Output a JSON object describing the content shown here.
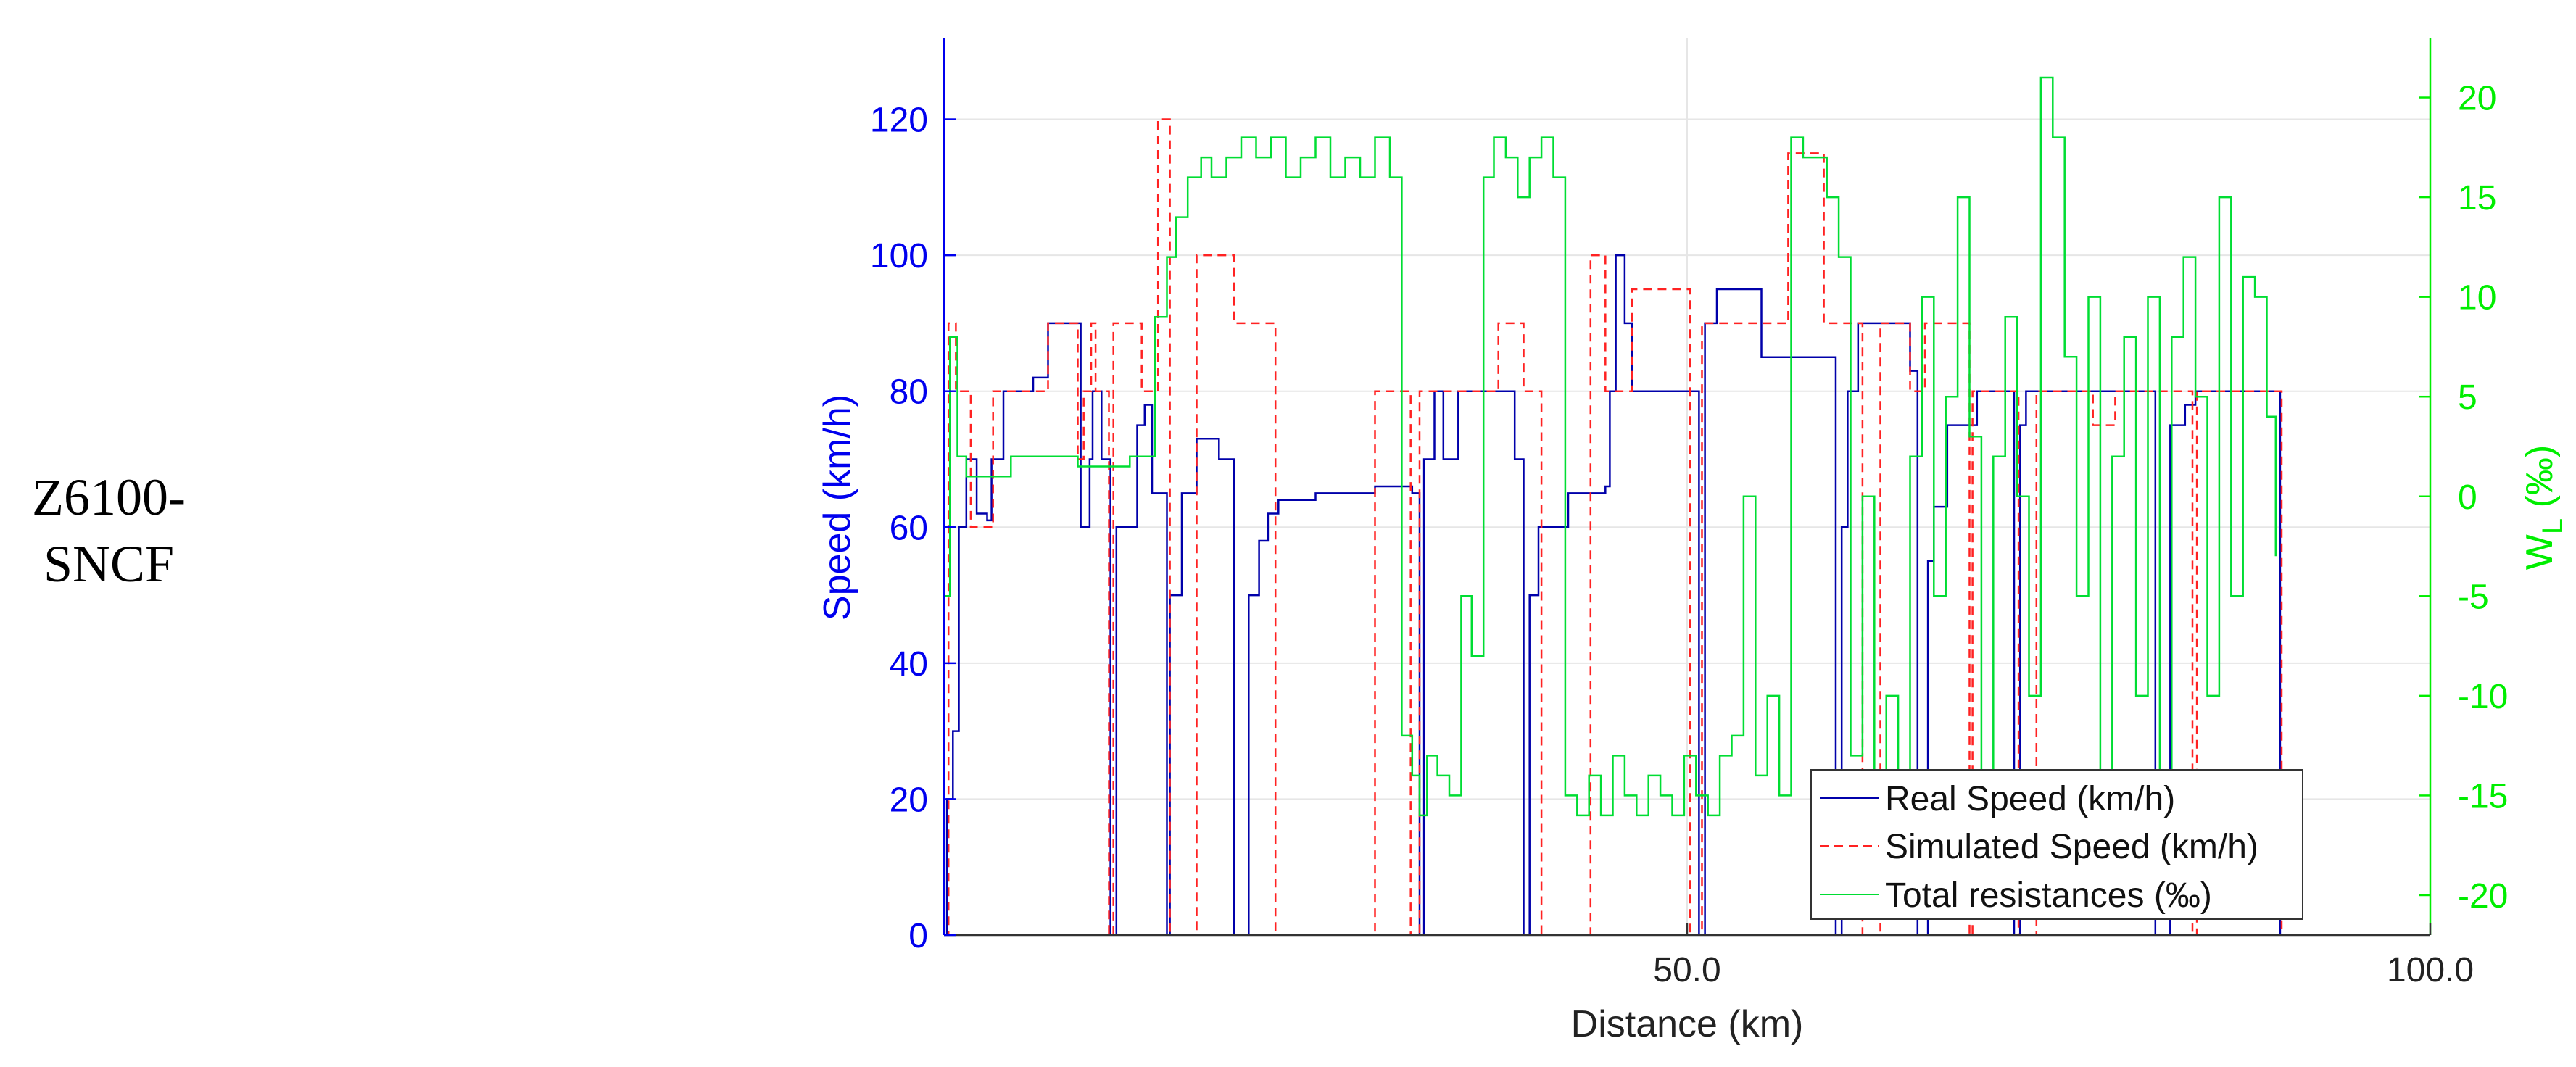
{
  "row_label": {
    "line1": "Z6100-",
    "line2": "SNCF"
  },
  "colors": {
    "left_axis": "#0000ee",
    "right_axis": "#00ee00",
    "real_speed": "#0000aa",
    "simulated_speed": "#ff2222",
    "total_resistances": "#00dd33",
    "grid": "#e6e6e6",
    "axis_black": "#333333"
  },
  "chart_data": {
    "type": "line",
    "xlabel": "Distance (km)",
    "ylabel": "Speed (km/h)",
    "y2label_main": "W",
    "y2label_sub": "L",
    "y2label_tail": " (‰)",
    "xlim": [
      0,
      100
    ],
    "ylim": [
      0,
      132
    ],
    "y2lim": [
      -22,
      23
    ],
    "x_ticks": [
      50,
      100
    ],
    "x_tick_labels": [
      "50.0",
      "100.0"
    ],
    "y_ticks": [
      0,
      20,
      40,
      60,
      80,
      100,
      120
    ],
    "y_tick_labels": [
      "0",
      "20",
      "40",
      "60",
      "80",
      "100",
      "120"
    ],
    "y2_ticks": [
      -20,
      -15,
      -10,
      -5,
      0,
      5,
      10,
      15,
      20
    ],
    "y2_tick_labels": [
      "-20",
      "-15",
      "-10",
      "-5",
      "0",
      "5",
      "10",
      "15",
      "20"
    ],
    "grid": true,
    "legend_position": "bottom-right",
    "series": [
      {
        "name": "Real Speed (km/h)",
        "axis": "left",
        "style": "solid",
        "x": [
          0,
          0.2,
          0.6,
          1.0,
          1.5,
          2.2,
          2.9,
          3.2,
          4.0,
          5.0,
          6.0,
          7.0,
          8.5,
          9.2,
          9.8,
          10.0,
          10.6,
          11.2,
          11.6,
          13.0,
          13.5,
          14.0,
          15.0,
          15.2,
          16.0,
          17.0,
          18.5,
          19.5,
          20.5,
          21.2,
          21.8,
          22.5,
          25.0,
          29.0,
          31.5,
          32.0,
          32.3,
          33.0,
          33.6,
          34.0,
          34.6,
          35.0,
          35.3,
          37.0,
          38.0,
          38.4,
          39.0,
          39.4,
          40.0,
          42.0,
          44.5,
          44.8,
          45.2,
          45.8,
          46.3,
          47.0,
          49.0,
          50.0,
          50.8,
          51.0,
          51.2,
          52.0,
          53.0,
          55.0,
          56.0,
          58.0,
          60.0,
          60.4,
          60.8,
          61.5,
          62.5,
          64.0,
          65.0,
          65.5,
          66.2,
          66.6,
          67.5,
          69.5,
          71.5,
          72.0,
          72.4,
          72.8,
          73.5,
          75.0,
          76.0,
          76.3,
          76.6,
          78.0,
          80.0,
          81.5,
          82.5,
          83.5,
          84.2,
          85.0,
          86.0,
          86.4,
          86.8,
          87.5,
          88.3,
          89.5,
          89.7,
          89.9,
          100.0
        ],
        "y": [
          0,
          20,
          30,
          60,
          70,
          62,
          61,
          70,
          80,
          80,
          82,
          90,
          90,
          60,
          70,
          80,
          70,
          0,
          60,
          75,
          78,
          65,
          0,
          50,
          65,
          73,
          70,
          0,
          50,
          58,
          62,
          64,
          65,
          66,
          65,
          0,
          70,
          80,
          70,
          70,
          80,
          80,
          80,
          80,
          80,
          70,
          0,
          50,
          60,
          65,
          66,
          80,
          100,
          90,
          80,
          80,
          80,
          80,
          0,
          0,
          90,
          95,
          95,
          85,
          85,
          85,
          0,
          60,
          80,
          90,
          90,
          90,
          83,
          0,
          55,
          63,
          75,
          80,
          80,
          0,
          75,
          80,
          80,
          80,
          80,
          80,
          80,
          80,
          80,
          0,
          75,
          78,
          80,
          80,
          80,
          80,
          80,
          80,
          80,
          80,
          80,
          0,
          null
        ]
      },
      {
        "name": "Simulated Speed (km/h)",
        "axis": "left",
        "style": "dashed",
        "x": [
          0,
          0.3,
          0.8,
          1.4,
          1.8,
          3.0,
          3.3,
          5.5,
          6.6,
          7.0,
          8.5,
          9.0,
          9.4,
          9.9,
          10.2,
          10.9,
          11.1,
          11.4,
          13.0,
          13.3,
          14.0,
          14.4,
          15.0,
          15.2,
          17.0,
          17.3,
          19.0,
          19.5,
          22.0,
          22.3,
          29.0,
          29.2,
          31.0,
          31.4,
          32.0,
          32.2,
          37.0,
          37.3,
          38.8,
          39.0,
          40.0,
          40.2,
          43.5,
          43.8,
          44.5,
          44.8,
          46.0,
          46.3,
          50.0,
          50.2,
          50.8,
          51.0,
          56.5,
          56.8,
          59.0,
          59.2,
          61.5,
          61.8,
          63.0,
          63.2,
          65.0,
          65.3,
          66.0,
          66.2,
          69.0,
          69.2,
          72.0,
          72.3,
          73.5,
          73.8,
          77.0,
          77.3,
          78.5,
          78.8,
          80.0,
          80.2,
          84.0,
          84.3,
          86.0,
          86.2,
          88.0,
          88.3,
          90.0,
          100.0
        ],
        "y": [
          0,
          90,
          80,
          80,
          60,
          60,
          80,
          80,
          80,
          90,
          90,
          70,
          80,
          90,
          80,
          80,
          0,
          90,
          90,
          80,
          80,
          120,
          120,
          0,
          100,
          100,
          100,
          90,
          90,
          0,
          80,
          80,
          80,
          0,
          80,
          80,
          80,
          90,
          90,
          80,
          80,
          0,
          100,
          100,
          80,
          80,
          80,
          95,
          95,
          0,
          0,
          90,
          90,
          115,
          115,
          90,
          90,
          0,
          90,
          90,
          80,
          80,
          90,
          90,
          0,
          80,
          80,
          0,
          80,
          80,
          80,
          75,
          75,
          80,
          80,
          80,
          0,
          80,
          80,
          80,
          80,
          80,
          0,
          null
        ]
      },
      {
        "name": "Total resistances (‰)",
        "axis": "right",
        "style": "solid",
        "x": [
          0,
          0.4,
          0.9,
          1.5,
          2.3,
          3.0,
          3.5,
          4.5,
          5.5,
          6.5,
          7.5,
          9.0,
          10.0,
          11.0,
          12.0,
          12.5,
          13.3,
          14.2,
          15.0,
          15.6,
          16.4,
          17.3,
          18.0,
          19.0,
          20.0,
          21.0,
          22.0,
          23.0,
          24.0,
          25.0,
          26.0,
          27.0,
          28.0,
          29.0,
          30.0,
          30.8,
          31.5,
          32.0,
          32.5,
          33.2,
          34.0,
          34.8,
          35.5,
          36.3,
          37.0,
          37.8,
          38.6,
          39.4,
          40.2,
          41.0,
          41.8,
          42.6,
          43.4,
          44.2,
          45.0,
          45.8,
          46.6,
          47.4,
          48.2,
          49.0,
          49.8,
          50.6,
          51.4,
          52.2,
          53.0,
          53.8,
          54.6,
          55.4,
          56.2,
          57.0,
          57.8,
          58.6,
          59.4,
          60.2,
          61.0,
          61.8,
          62.6,
          63.4,
          64.2,
          65.0,
          65.8,
          66.6,
          67.4,
          68.2,
          69.0,
          69.8,
          70.6,
          71.4,
          72.2,
          73.0,
          73.8,
          74.6,
          75.4,
          76.2,
          77.0,
          77.8,
          78.6,
          79.4,
          80.2,
          81.0,
          81.8,
          82.6,
          83.4,
          84.2,
          85.0,
          85.8,
          86.6,
          87.4,
          88.2,
          89.0,
          89.6,
          100.0
        ],
        "y": [
          -5,
          8,
          2,
          1,
          1,
          1,
          1,
          2,
          2,
          2,
          2,
          1.5,
          1.5,
          1.5,
          1.5,
          2,
          2,
          9,
          12,
          14,
          16,
          17,
          16,
          17,
          18,
          17,
          18,
          16,
          17,
          18,
          16,
          17,
          16,
          18,
          16,
          -12,
          -14,
          -16,
          -13,
          -14,
          -15,
          -5,
          -8,
          16,
          18,
          17,
          15,
          17,
          18,
          16,
          -15,
          -16,
          -14,
          -16,
          -13,
          -15,
          -16,
          -14,
          -15,
          -16,
          -13,
          -15,
          -16,
          -13,
          -12,
          0,
          -14,
          -10,
          -15,
          18,
          17,
          17,
          15,
          12,
          -13,
          0,
          -14,
          -10,
          -15,
          2,
          10,
          -5,
          5,
          15,
          3,
          -15,
          2,
          9,
          0,
          -10,
          21,
          18,
          7,
          -5,
          10,
          -15,
          2,
          8,
          -10,
          10,
          -15,
          8,
          12,
          5,
          -10,
          15,
          -5,
          11,
          10,
          4,
          -3,
          null
        ]
      }
    ]
  }
}
